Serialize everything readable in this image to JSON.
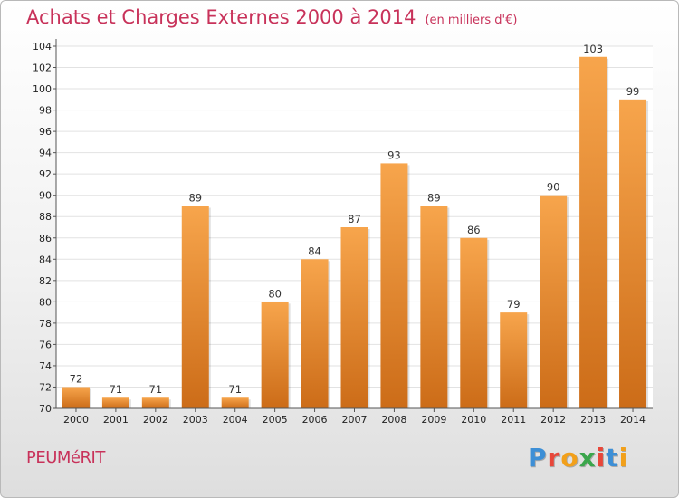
{
  "header": {
    "title": "Achats et Charges Externes 2000 à 2014",
    "unit": "(en milliers d'€)"
  },
  "footer": {
    "place": "PEUMéRIT",
    "logo": [
      "P",
      "r",
      "o",
      "x",
      "i",
      "t",
      "i"
    ],
    "logo_colors": [
      "#3d8fd6",
      "#e8473a",
      "#f2a01a",
      "#3aa64b",
      "#e8473a",
      "#3d8fd6",
      "#f2a01a"
    ]
  },
  "chart_data": {
    "type": "bar",
    "title": "Achats et Charges Externes 2000 à 2014",
    "subtitle": "(en milliers d'€)",
    "categories": [
      "2000",
      "2001",
      "2002",
      "2003",
      "2004",
      "2005",
      "2006",
      "2007",
      "2008",
      "2009",
      "2010",
      "2011",
      "2012",
      "2013",
      "2014"
    ],
    "values": [
      72,
      71,
      71,
      89,
      71,
      80,
      84,
      87,
      93,
      89,
      86,
      79,
      90,
      103,
      99
    ],
    "ylim": [
      70,
      104
    ],
    "yticks": [
      70,
      72,
      74,
      76,
      78,
      80,
      82,
      84,
      86,
      88,
      90,
      92,
      94,
      96,
      98,
      100,
      102,
      104
    ],
    "grid": true,
    "colors": {
      "bar_light": "#f7a54c",
      "bar_dark": "#cc6c18",
      "grid": "#e2e2e2"
    }
  }
}
